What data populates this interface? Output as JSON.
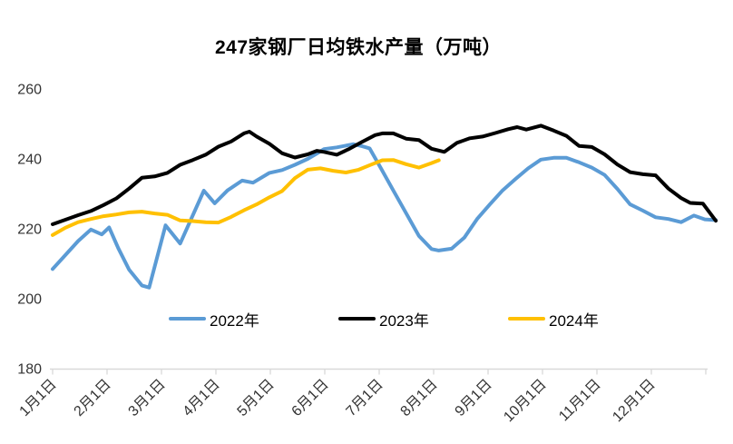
{
  "colors": {
    "background": "#FFFFFF",
    "axis_line": "#D9D9D9",
    "label": "#333333",
    "series_2022": "#5B9BD5",
    "series_2023": "#000000",
    "series_2024": "#FFC000"
  },
  "chart_data": {
    "type": "line",
    "title": "247家钢厂日均铁水产量（万吨）",
    "x_axis": {
      "unit": "day_of_year",
      "range_days": [
        0,
        364
      ],
      "tick_labels": [
        "1月1日",
        "2月1日",
        "3月1日",
        "4月1日",
        "5月1日",
        "6月1日",
        "7月1日",
        "8月1日",
        "9月1日",
        "10月1日",
        "11月1日",
        "12月1日"
      ]
    },
    "y_axis": {
      "range": [
        180,
        260
      ],
      "ticks": [
        180,
        200,
        220,
        240,
        260
      ]
    },
    "grid": false,
    "legend_position": "bottom-inside",
    "series": [
      {
        "name": "2022年",
        "color": "#5B9BD5",
        "points": [
          [
            0,
            208.5
          ],
          [
            7,
            212.5
          ],
          [
            14,
            216.5
          ],
          [
            21,
            219.8
          ],
          [
            27,
            218.4
          ],
          [
            31,
            220.4
          ],
          [
            36,
            214.5
          ],
          [
            42,
            208.3
          ],
          [
            49,
            203.8
          ],
          [
            53,
            203.2
          ],
          [
            62,
            221.0
          ],
          [
            70,
            215.8
          ],
          [
            83,
            230.9
          ],
          [
            89,
            227.3
          ],
          [
            96,
            231.0
          ],
          [
            104,
            233.8
          ],
          [
            110,
            233.2
          ],
          [
            119,
            236.0
          ],
          [
            126,
            236.8
          ],
          [
            133,
            238.3
          ],
          [
            140,
            240.0
          ],
          [
            145,
            241.5
          ],
          [
            149,
            242.8
          ],
          [
            156,
            243.3
          ],
          [
            165,
            244.2
          ],
          [
            170,
            243.6
          ],
          [
            174,
            243.0
          ],
          [
            180,
            237.5
          ],
          [
            187,
            231.0
          ],
          [
            194,
            224.5
          ],
          [
            201,
            218.0
          ],
          [
            208,
            214.2
          ],
          [
            212,
            213.8
          ],
          [
            219,
            214.3
          ],
          [
            226,
            217.5
          ],
          [
            233,
            222.8
          ],
          [
            240,
            227.0
          ],
          [
            247,
            231.0
          ],
          [
            254,
            234.2
          ],
          [
            261,
            237.3
          ],
          [
            268,
            239.8
          ],
          [
            275,
            240.3
          ],
          [
            282,
            240.3
          ],
          [
            289,
            239.0
          ],
          [
            296,
            237.5
          ],
          [
            303,
            235.4
          ],
          [
            310,
            231.4
          ],
          [
            317,
            227.0
          ],
          [
            324,
            225.2
          ],
          [
            331,
            223.3
          ],
          [
            338,
            222.8
          ],
          [
            345,
            221.9
          ],
          [
            352,
            223.8
          ],
          [
            358,
            222.7
          ],
          [
            364,
            222.5
          ]
        ]
      },
      {
        "name": "2023年",
        "color": "#000000",
        "points": [
          [
            0,
            221.3
          ],
          [
            7,
            222.6
          ],
          [
            14,
            223.9
          ],
          [
            21,
            225.1
          ],
          [
            28,
            226.8
          ],
          [
            35,
            228.7
          ],
          [
            42,
            231.5
          ],
          [
            49,
            234.6
          ],
          [
            56,
            235.0
          ],
          [
            63,
            236.0
          ],
          [
            70,
            238.3
          ],
          [
            77,
            239.7
          ],
          [
            84,
            241.2
          ],
          [
            91,
            243.5
          ],
          [
            98,
            245.0
          ],
          [
            105,
            247.3
          ],
          [
            108,
            247.8
          ],
          [
            112,
            246.4
          ],
          [
            119,
            244.3
          ],
          [
            126,
            241.6
          ],
          [
            133,
            240.4
          ],
          [
            140,
            241.3
          ],
          [
            145,
            242.3
          ],
          [
            149,
            242.0
          ],
          [
            156,
            241.2
          ],
          [
            163,
            242.9
          ],
          [
            170,
            244.9
          ],
          [
            177,
            246.8
          ],
          [
            181,
            247.3
          ],
          [
            187,
            247.3
          ],
          [
            194,
            245.8
          ],
          [
            201,
            245.4
          ],
          [
            208,
            242.9
          ],
          [
            215,
            242.0
          ],
          [
            222,
            244.6
          ],
          [
            229,
            245.9
          ],
          [
            236,
            246.4
          ],
          [
            243,
            247.4
          ],
          [
            250,
            248.5
          ],
          [
            255,
            249.1
          ],
          [
            260,
            248.4
          ],
          [
            268,
            249.5
          ],
          [
            275,
            248.1
          ],
          [
            282,
            246.6
          ],
          [
            289,
            243.7
          ],
          [
            296,
            243.4
          ],
          [
            303,
            241.3
          ],
          [
            310,
            238.4
          ],
          [
            317,
            236.2
          ],
          [
            324,
            235.6
          ],
          [
            331,
            235.3
          ],
          [
            338,
            231.5
          ],
          [
            345,
            228.8
          ],
          [
            350,
            227.4
          ],
          [
            357,
            227.2
          ],
          [
            364,
            222.3
          ]
        ]
      },
      {
        "name": "2024年",
        "color": "#FFC000",
        "points": [
          [
            0,
            218.2
          ],
          [
            7,
            220.3
          ],
          [
            14,
            221.9
          ],
          [
            21,
            222.8
          ],
          [
            28,
            223.6
          ],
          [
            35,
            224.1
          ],
          [
            42,
            224.7
          ],
          [
            49,
            224.9
          ],
          [
            56,
            224.4
          ],
          [
            63,
            224.0
          ],
          [
            70,
            222.4
          ],
          [
            77,
            222.2
          ],
          [
            84,
            221.9
          ],
          [
            91,
            221.8
          ],
          [
            98,
            223.4
          ],
          [
            105,
            225.3
          ],
          [
            112,
            227.0
          ],
          [
            119,
            229.0
          ],
          [
            126,
            230.8
          ],
          [
            133,
            234.5
          ],
          [
            140,
            236.9
          ],
          [
            147,
            237.3
          ],
          [
            154,
            236.6
          ],
          [
            161,
            236.1
          ],
          [
            168,
            236.9
          ],
          [
            175,
            238.4
          ],
          [
            181,
            239.6
          ],
          [
            187,
            239.7
          ],
          [
            194,
            238.5
          ],
          [
            201,
            237.5
          ],
          [
            208,
            238.8
          ],
          [
            212,
            239.6
          ]
        ]
      }
    ]
  },
  "legend": {
    "items": [
      {
        "label": "2022年"
      },
      {
        "label": "2023年"
      },
      {
        "label": "2024年"
      }
    ]
  }
}
